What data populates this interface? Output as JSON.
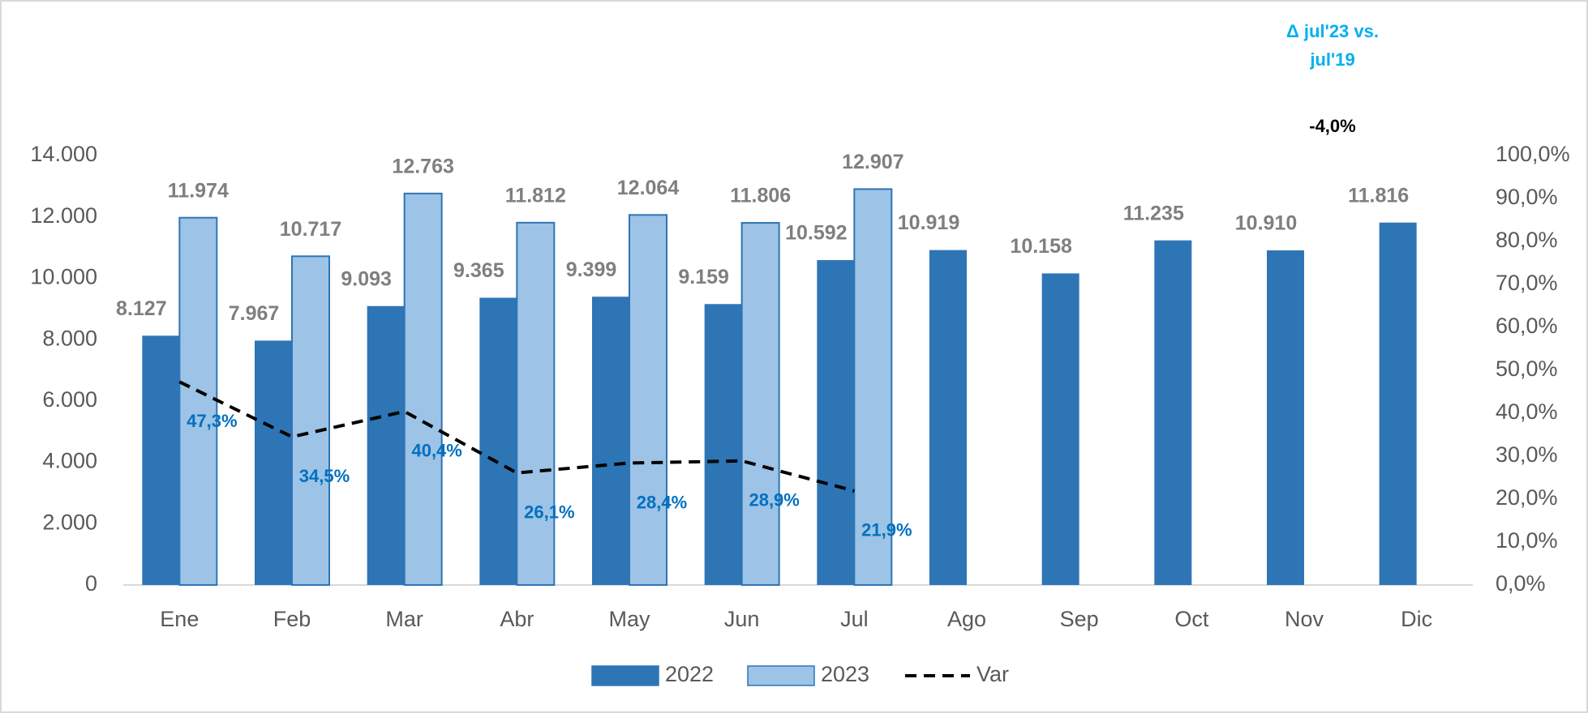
{
  "chart_data": {
    "type": "bar",
    "categories": [
      "Ene",
      "Feb",
      "Mar",
      "Abr",
      "May",
      "Jun",
      "Jul",
      "Ago",
      "Sep",
      "Oct",
      "Nov",
      "Dic"
    ],
    "series": [
      {
        "name": "2022",
        "color": "#2e75b6",
        "values": [
          8127,
          7967,
          9093,
          9365,
          9399,
          9159,
          10592,
          10919,
          10158,
          11235,
          10910,
          11816
        ],
        "value_labels": [
          "8.127",
          "7.967",
          "9.093",
          "9.365",
          "9.399",
          "9.159",
          "10.592",
          "10.919",
          "10.158",
          "11.235",
          "10.910",
          "11.816"
        ]
      },
      {
        "name": "2023",
        "color": "#9dc3e6",
        "values": [
          11974,
          10717,
          12763,
          11812,
          12064,
          11806,
          12907,
          null,
          null,
          null,
          null,
          null
        ],
        "value_labels": [
          "11.974",
          "10.717",
          "12.763",
          "11.812",
          "12.064",
          "11.806",
          "12.907",
          null,
          null,
          null,
          null,
          null
        ]
      },
      {
        "name": "Var",
        "type": "line",
        "axis": "y2",
        "color": "#000000",
        "dashed": true,
        "values": [
          47.3,
          34.5,
          40.4,
          26.1,
          28.4,
          28.9,
          21.9,
          null,
          null,
          null,
          null,
          null
        ],
        "value_labels": [
          "47,3%",
          "34,5%",
          "40,4%",
          "26,1%",
          "28,4%",
          "28,9%",
          "21,9%",
          null,
          null,
          null,
          null,
          null
        ]
      }
    ],
    "ylim": [
      0,
      14000
    ],
    "yticks": [
      0,
      {
        "value": 2000,
        "label": "2.000"
      },
      {
        "value": 4000,
        "label": "4.000"
      },
      {
        "value": 6000,
        "label": "6.000"
      },
      {
        "value": 8000,
        "label": "8.000"
      },
      {
        "value": 10000,
        "label": "10.000"
      },
      {
        "value": 12000,
        "label": "12.000"
      },
      {
        "value": 14000,
        "label": "14.000"
      }
    ],
    "y2lim": [
      0,
      100
    ],
    "y2ticks": [
      {
        "value": 0,
        "label": "0,0%"
      },
      {
        "value": 10,
        "label": "10,0%"
      },
      {
        "value": 20,
        "label": "20,0%"
      },
      {
        "value": 30,
        "label": "30,0%"
      },
      {
        "value": 40,
        "label": "40,0%"
      },
      {
        "value": 50,
        "label": "50,0%"
      },
      {
        "value": 60,
        "label": "60,0%"
      },
      {
        "value": 70,
        "label": "70,0%"
      },
      {
        "value": 80,
        "label": "80,0%"
      },
      {
        "value": 90,
        "label": "90,0%"
      },
      {
        "value": 100,
        "label": "100,0%"
      }
    ],
    "grid": false,
    "legend": "bottom",
    "annotation_title": [
      "Δ jul'23 vs.",
      "jul'19"
    ],
    "annotation_value": "-4,0%"
  }
}
